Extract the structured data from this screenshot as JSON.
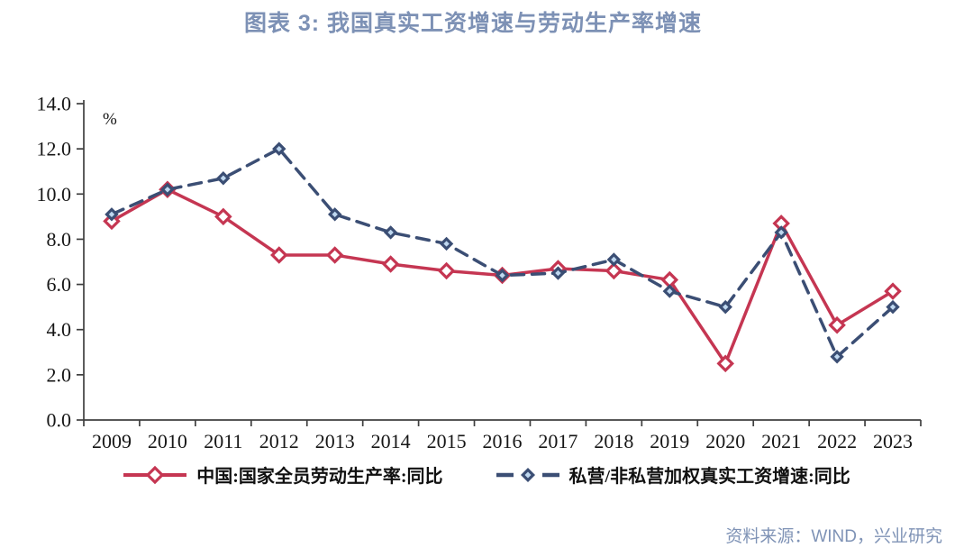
{
  "title": "图表 3: 我国真实工资增速与劳动生产率增速",
  "source": "资料来源：WIND，兴业研究",
  "colors": {
    "title_text": "#7D91B5",
    "source_text": "#7F93B6",
    "axis": "#3f3f3f",
    "tick_text": "#161616",
    "series_red": "#C53652",
    "series_blue": "#3B4E74",
    "blue_marker_inner": "#BFD8F0",
    "red_marker_fill": "#FFFFFF"
  },
  "chart_data": {
    "type": "line",
    "categories": [
      "2009",
      "2010",
      "2011",
      "2012",
      "2013",
      "2014",
      "2015",
      "2016",
      "2017",
      "2018",
      "2019",
      "2020",
      "2021",
      "2022",
      "2023"
    ],
    "series": [
      {
        "name": "中国:国家全员劳动生产率:同比",
        "style": "solid",
        "color_key": "series_red",
        "values": [
          8.8,
          10.2,
          9.0,
          7.3,
          7.3,
          6.9,
          6.6,
          6.4,
          6.7,
          6.6,
          6.2,
          2.5,
          8.7,
          4.2,
          5.7
        ]
      },
      {
        "name": "私营/非私营加权真实工资增速:同比",
        "style": "dashed",
        "color_key": "series_blue",
        "values": [
          9.1,
          10.2,
          10.7,
          12.0,
          9.1,
          8.3,
          7.8,
          6.4,
          6.5,
          7.1,
          5.7,
          5.0,
          8.3,
          2.8,
          5.0
        ]
      }
    ],
    "ylabel_unit": "%",
    "ylim": [
      0,
      14
    ],
    "ytick_step": 2,
    "ytick_labels": [
      "0.0",
      "2.0",
      "4.0",
      "6.0",
      "8.0",
      "10.0",
      "12.0",
      "14.0"
    ],
    "grid": false,
    "legend_position": "bottom"
  }
}
